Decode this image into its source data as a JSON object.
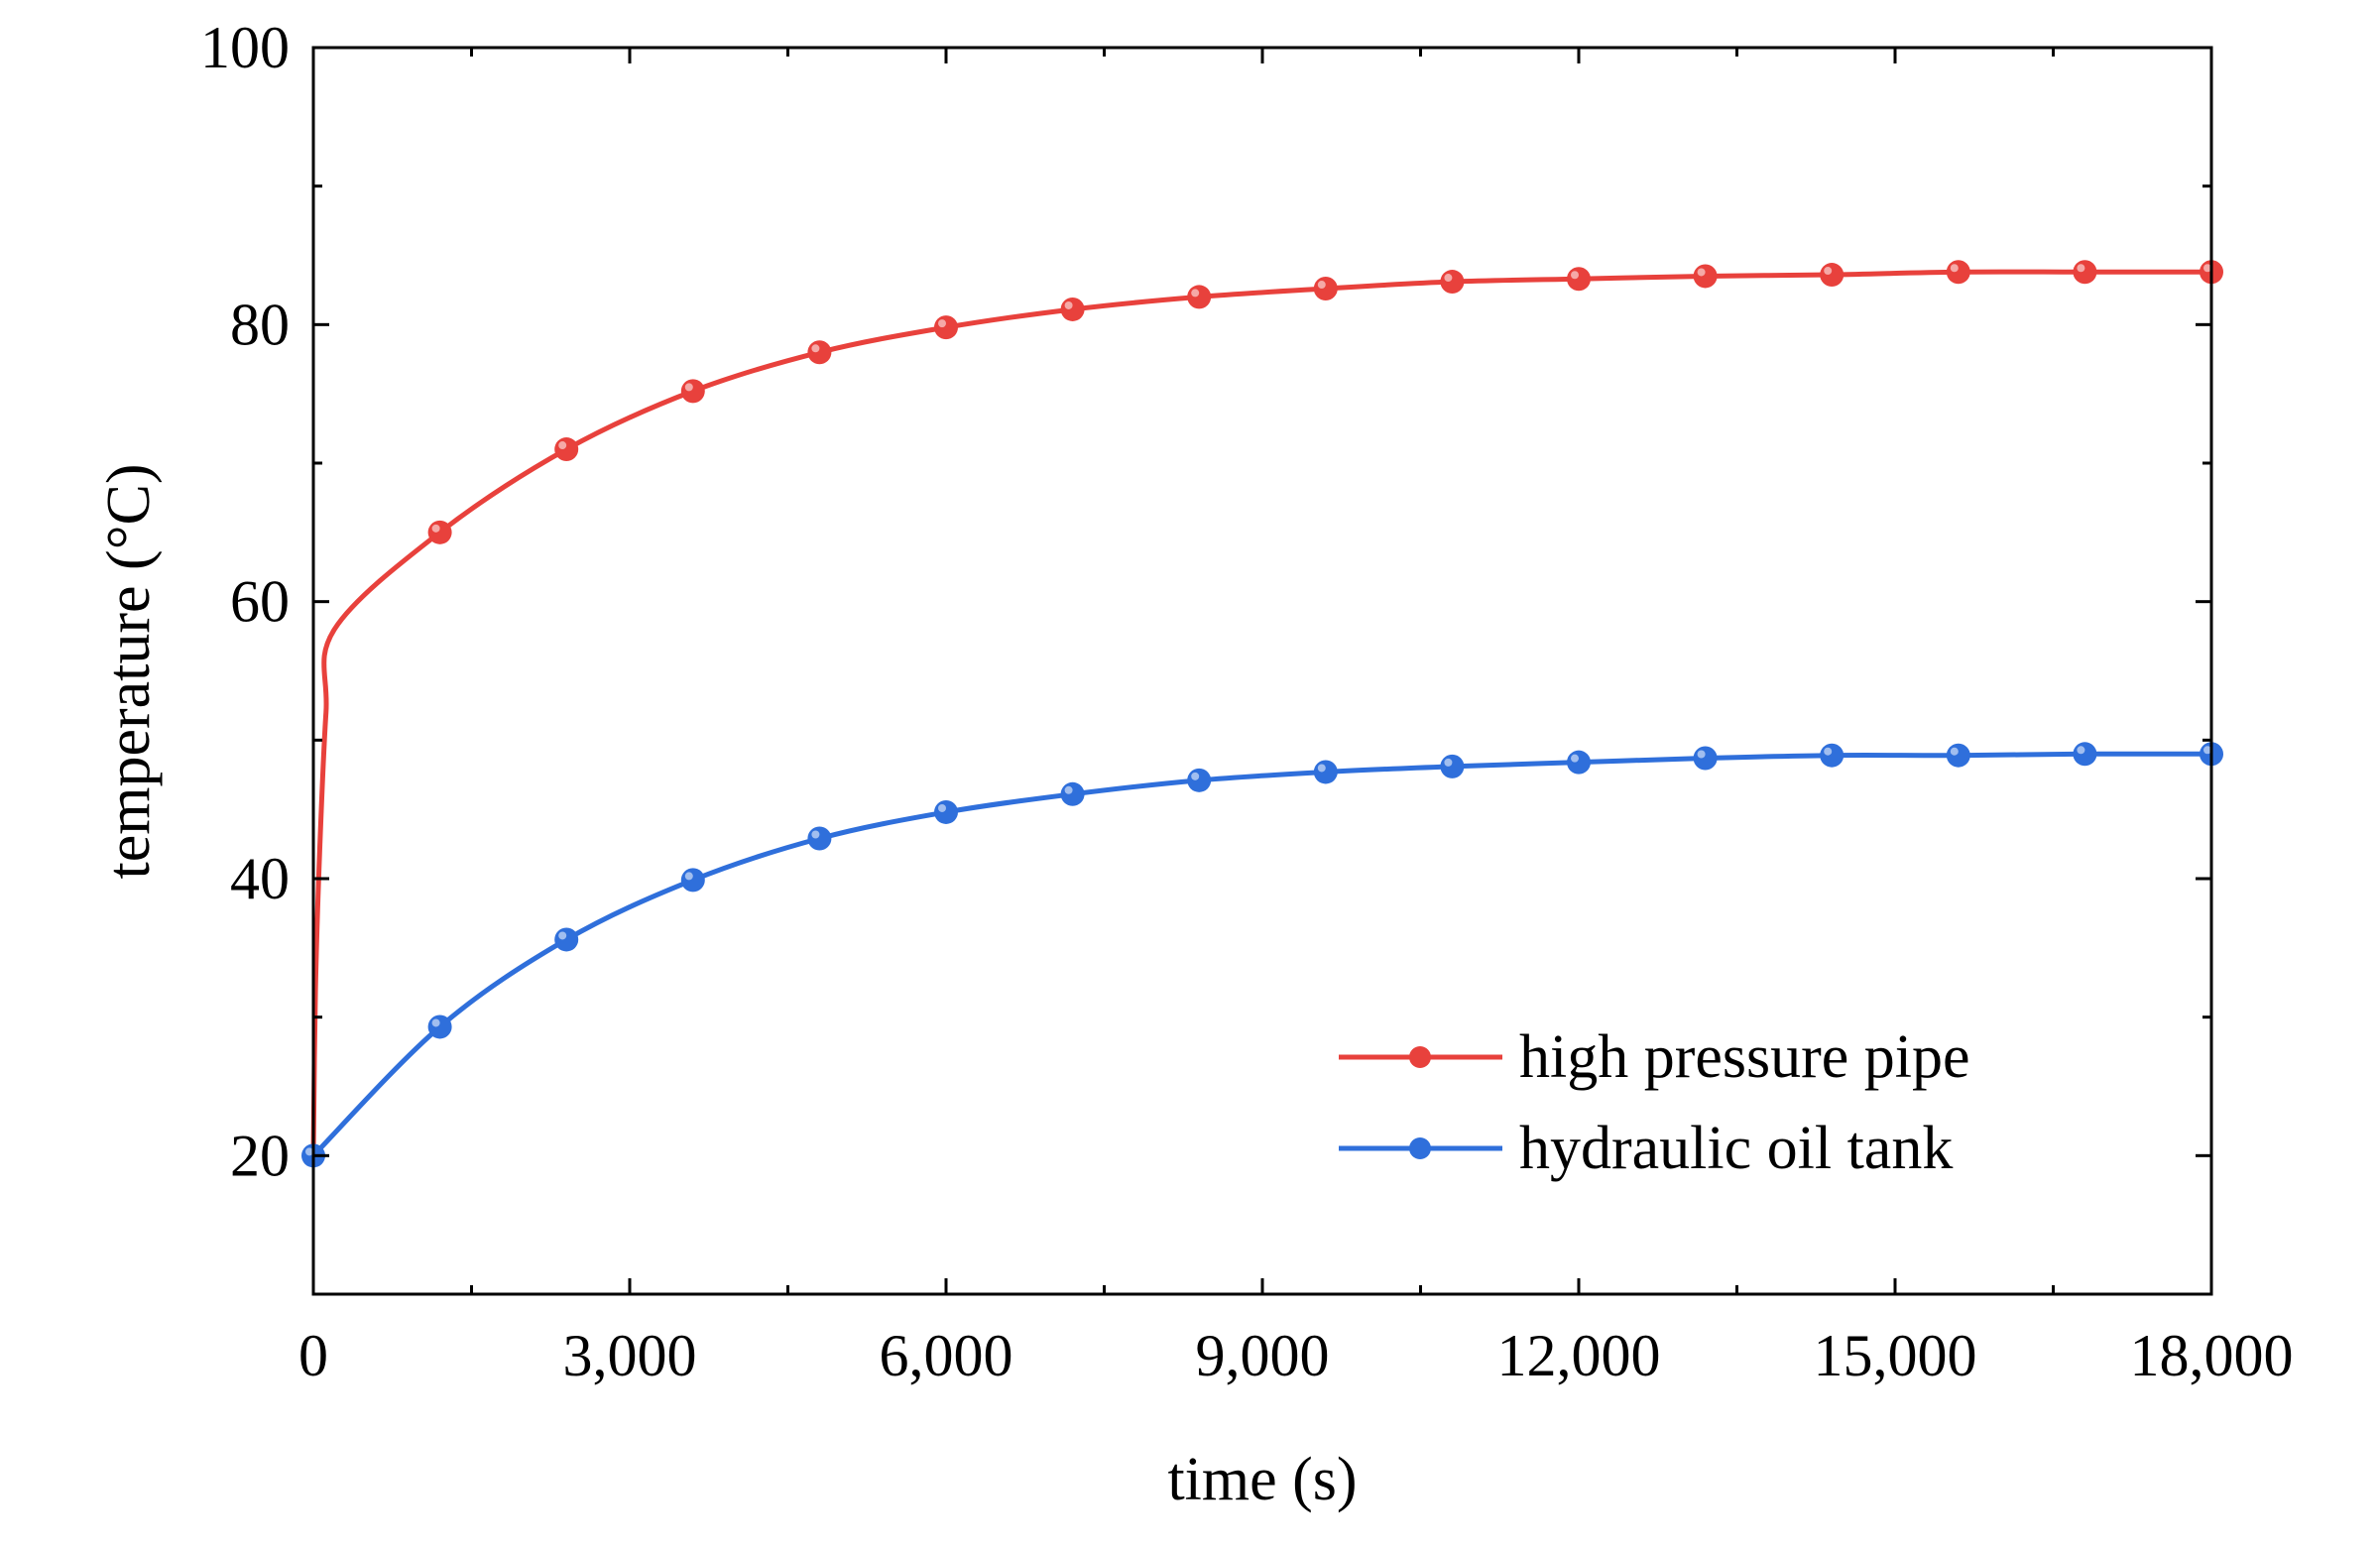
{
  "chart_data": {
    "type": "line",
    "title": "",
    "xlabel": "time (s)",
    "ylabel": "temperature (°C)",
    "xlim": [
      0,
      18000
    ],
    "ylim": [
      10,
      100
    ],
    "x_ticks": [
      0,
      3000,
      6000,
      9000,
      12000,
      15000,
      18000
    ],
    "x_tick_labels": [
      "0",
      "3,000",
      "6,000",
      "9,000",
      "12,000",
      "15,000",
      "18,000"
    ],
    "y_ticks": [
      20,
      40,
      60,
      80,
      100
    ],
    "y_tick_labels": [
      "20",
      "40",
      "60",
      "80",
      "100"
    ],
    "grid": false,
    "legend_position": "bottom-right",
    "series": [
      {
        "name": "high pressure pipe",
        "color": "#e8413c",
        "curve_x": [
          0,
          20,
          60,
          120,
          200,
          1200,
          2400,
          3600,
          4800,
          6000,
          7200,
          8400,
          9600,
          10800,
          12000,
          13200,
          14400,
          15600,
          16800,
          18000
        ],
        "curve_y": [
          20,
          32,
          42,
          52,
          58,
          65,
          71,
          75.2,
          78,
          79.8,
          81.1,
          82,
          82.6,
          83.1,
          83.3,
          83.5,
          83.6,
          83.8,
          83.8,
          83.8
        ],
        "marker_x": [
          1200,
          2400,
          3600,
          4800,
          6000,
          7200,
          8400,
          9600,
          10800,
          12000,
          13200,
          14400,
          15600,
          16800,
          18000
        ],
        "marker_y": [
          65,
          71,
          75.2,
          78,
          79.8,
          81.1,
          82,
          82.6,
          83.1,
          83.3,
          83.5,
          83.6,
          83.8,
          83.8,
          83.8
        ]
      },
      {
        "name": "hydraulic oil tank",
        "color": "#2f6fdb",
        "curve_x": [
          0,
          1200,
          2400,
          3600,
          4800,
          6000,
          7200,
          8400,
          9600,
          10800,
          12000,
          13200,
          14400,
          15600,
          16800,
          18000
        ],
        "curve_y": [
          20,
          29.3,
          35.6,
          39.9,
          42.9,
          44.8,
          46.1,
          47.1,
          47.7,
          48.1,
          48.4,
          48.7,
          48.9,
          48.9,
          49,
          49
        ],
        "marker_x": [
          0,
          1200,
          2400,
          3600,
          4800,
          6000,
          7200,
          8400,
          9600,
          10800,
          12000,
          13200,
          14400,
          15600,
          16800,
          18000
        ],
        "marker_y": [
          20,
          29.3,
          35.6,
          39.9,
          42.9,
          44.8,
          46.1,
          47.1,
          47.7,
          48.1,
          48.4,
          48.7,
          48.9,
          48.9,
          49,
          49
        ]
      }
    ]
  }
}
